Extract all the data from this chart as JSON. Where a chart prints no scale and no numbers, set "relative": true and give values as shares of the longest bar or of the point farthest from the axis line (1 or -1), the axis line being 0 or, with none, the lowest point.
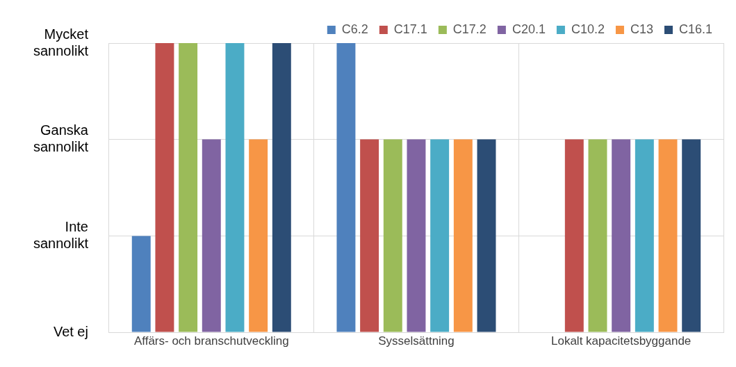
{
  "chart_data": {
    "type": "bar",
    "categories": [
      "Affärs- och branschutveckling",
      "Sysselsättning",
      "Lokalt kapacitetsbyggande"
    ],
    "series": [
      {
        "name": "C6.2",
        "color": "#4f81bd",
        "values": [
          0.333,
          1,
          0
        ]
      },
      {
        "name": "C17.1",
        "color": "#c0504d",
        "values": [
          1,
          0.667,
          0.667
        ]
      },
      {
        "name": "C17.2",
        "color": "#9bbb59",
        "values": [
          1,
          0.667,
          0.667
        ]
      },
      {
        "name": "C20.1",
        "color": "#8064a2",
        "values": [
          0.667,
          0.667,
          0.667
        ]
      },
      {
        "name": "C10.2",
        "color": "#4bacc6",
        "values": [
          1,
          0.667,
          0.667
        ]
      },
      {
        "name": "C13",
        "color": "#f79646",
        "values": [
          0.667,
          0.667,
          0.667
        ]
      },
      {
        "name": "C16.1",
        "color": "#2c4d75",
        "values": [
          1,
          0.667,
          0.667
        ]
      }
    ],
    "relative": true,
    "annotations": [
      "Vet ej",
      "Inte sannolikt",
      "Ganska sannolikt",
      "Mycket sannolikt"
    ],
    "grid": true,
    "legend": "top right"
  }
}
